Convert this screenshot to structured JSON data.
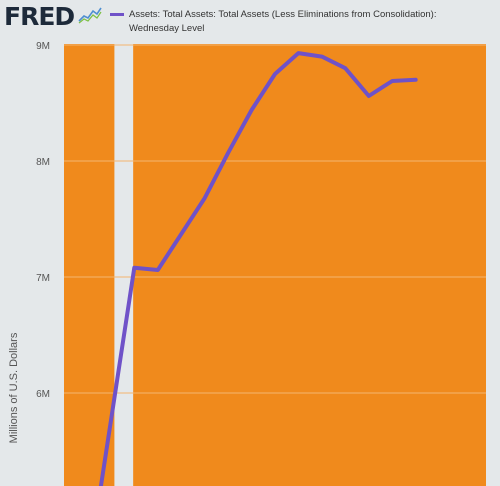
{
  "header": {
    "logo_text": "FRED",
    "logo_mark": "fred-sparkline-icon"
  },
  "chart_data": {
    "type": "line",
    "title": "",
    "ylabel": "Millions of U.S. Dollars",
    "xlabel": "",
    "ylim": [
      5.2,
      9.0
    ],
    "y_unit": "millions of millions (M)",
    "yticks": [
      {
        "value": 6,
        "label": "6M"
      },
      {
        "value": 7,
        "label": "7M"
      },
      {
        "value": 8,
        "label": "8M"
      },
      {
        "value": 9,
        "label": "9M"
      }
    ],
    "x_range": [
      0,
      18
    ],
    "grid": true,
    "legend_placement": "top",
    "shaded_period": {
      "start": 2.15,
      "end": 2.95
    },
    "series": [
      {
        "name": "Assets: Total Assets: Total Assets (Less Eliminations from Consolidation): Wednesday Level",
        "color": "#6f52c8",
        "points": [
          [
            1.5,
            5.1
          ],
          [
            3,
            7.08
          ],
          [
            4,
            7.06
          ],
          [
            5,
            7.37
          ],
          [
            6,
            7.68
          ],
          [
            7,
            8.07
          ],
          [
            8,
            8.44
          ],
          [
            9,
            8.75
          ],
          [
            10,
            8.93
          ],
          [
            11,
            8.9
          ],
          [
            12,
            8.8
          ],
          [
            13,
            8.56
          ],
          [
            14,
            8.69
          ],
          [
            15,
            8.7
          ]
        ]
      }
    ],
    "colors": {
      "plot_background": "#f08a1c",
      "recession_band": "#e4e8ea",
      "gridline": "#f4b56f",
      "page_background": "#e4e8ea"
    }
  }
}
